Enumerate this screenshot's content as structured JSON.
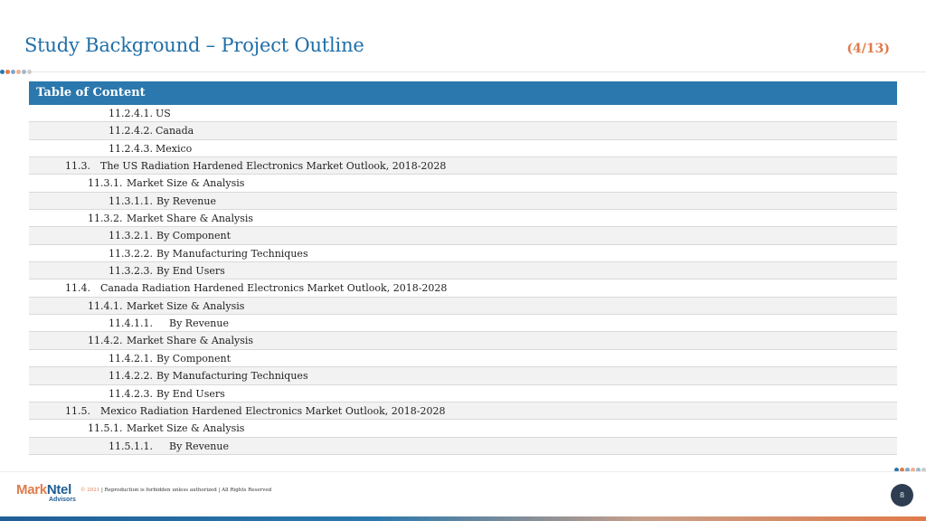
{
  "header": {
    "title": "Study Background – Project Outline",
    "page_count": "(4/13)"
  },
  "toc": {
    "heading": "Table of Content",
    "rows": [
      {
        "level": 3,
        "num": "11.2.4.1.",
        "text": "US"
      },
      {
        "level": 3,
        "num": "11.2.4.2.",
        "text": "Canada"
      },
      {
        "level": 3,
        "num": "11.2.4.3.",
        "text": "Mexico"
      },
      {
        "level": 1,
        "num": "11.3.",
        "text": "The US Radiation Hardened Electronics Market Outlook, 2018-2028"
      },
      {
        "level": 2,
        "num": "11.3.1.",
        "text": "Market Size & Analysis"
      },
      {
        "level": 3,
        "num": "11.3.1.1.",
        "text": "By Revenue",
        "style": "compact"
      },
      {
        "level": 2,
        "num": "11.3.2.",
        "text": "Market Share & Analysis"
      },
      {
        "level": 3,
        "num": "11.3.2.1.",
        "text": "By Component",
        "style": "compact"
      },
      {
        "level": 3,
        "num": "11.3.2.2.",
        "text": "By Manufacturing Techniques",
        "style": "compact"
      },
      {
        "level": 3,
        "num": "11.3.2.3.",
        "text": "By End Users",
        "style": "compact"
      },
      {
        "level": 1,
        "num": "11.4.",
        "text": "Canada Radiation Hardened Electronics Market Outlook, 2018-2028"
      },
      {
        "level": 2,
        "num": "11.4.1.",
        "text": "Market Size & Analysis"
      },
      {
        "level": 3,
        "num": "11.4.1.1.",
        "text": "By Revenue",
        "style": "wide"
      },
      {
        "level": 2,
        "num": "11.4.2.",
        "text": "Market Share & Analysis"
      },
      {
        "level": 3,
        "num": "11.4.2.1.",
        "text": "By Component",
        "style": "compact"
      },
      {
        "level": 3,
        "num": "11.4.2.2.",
        "text": "By Manufacturing Techniques",
        "style": "compact"
      },
      {
        "level": 3,
        "num": "11.4.2.3.",
        "text": "By End Users",
        "style": "compact"
      },
      {
        "level": 1,
        "num": "11.5.",
        "text": "Mexico Radiation Hardened Electronics Market Outlook, 2018-2028"
      },
      {
        "level": 2,
        "num": "11.5.1.",
        "text": "Market Size & Analysis"
      },
      {
        "level": 3,
        "num": "11.5.1.1.",
        "text": "By Revenue",
        "style": "wide"
      }
    ]
  },
  "footer": {
    "logo_mark": "Mark",
    "logo_ntel": "Ntel",
    "logo_sub": "Advisors",
    "copyright_year": "© 2021",
    "copyright_text": " | Reproduction is forbidden unless authorized | All Rights Reserved",
    "page_number": "8"
  },
  "colors": {
    "title": "#1f6fa8",
    "accent_orange": "#e07b4a",
    "table_header": "#2a78ad",
    "page_badge": "#2f3d52",
    "dots": [
      "#2a78ad",
      "#e07b4a",
      "#7fa7c9",
      "#f0b08e",
      "#9fb8cf",
      "#cccccc"
    ]
  }
}
